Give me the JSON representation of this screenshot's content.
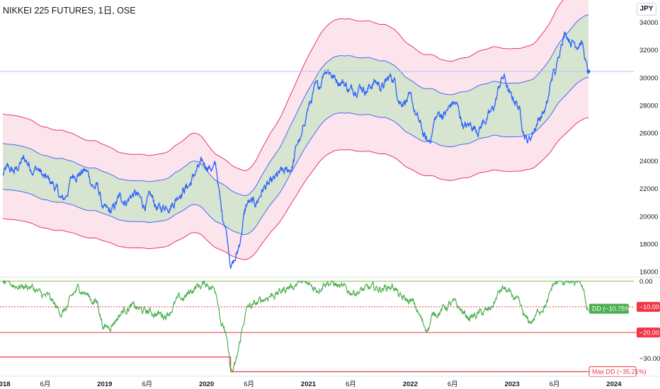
{
  "title": "NIKKEI 225 FUTURES, 1日, OSE",
  "currency": "JPY",
  "colors": {
    "price": "#2962ff",
    "inner_band_fill": "#d7e4cf",
    "inner_band_line": "#3d5afe",
    "outer_band_fill": "#fce4ec",
    "outer_band_line": "#e91e63",
    "drawdown": "#4caf50",
    "ref_red": "#f23645"
  },
  "chart_data": [
    {
      "type": "line",
      "title": "NIKKEI 225 FUTURES, 1日, OSE",
      "ylim": [
        15600,
        35600
      ],
      "y_ticks": [
        16000,
        18000,
        20000,
        22000,
        24000,
        26000,
        28000,
        30000,
        32000,
        34000
      ],
      "y_tick_labels": [
        "16000",
        "18000",
        "20000",
        "22000",
        "24000",
        "26000",
        "28000",
        "30000",
        "32000",
        "34000"
      ],
      "series": [
        {
          "x": [
            "2018-04",
            "2018-06",
            "2018-08",
            "2018-10",
            "2018-12",
            "2019-01",
            "2019-04",
            "2019-06",
            "2019-08",
            "2019-10",
            "2019-12",
            "2020-01",
            "2020-02",
            "2020-03",
            "2020-04",
            "2020-06",
            "2020-09",
            "2020-11",
            "2020-12",
            "2021-01",
            "2021-02",
            "2021-03",
            "2021-06",
            "2021-09",
            "2021-11",
            "2021-12",
            "2022-01",
            "2022-03",
            "2022-04",
            "2022-06",
            "2022-08",
            "2022-10",
            "2022-12",
            "2023-01",
            "2023-03",
            "2023-05",
            "2023-06",
            "2023-07",
            "2023-08",
            "2023-09",
            "2023-10"
          ],
          "values": [
            23900,
            22800,
            21300,
            23400,
            22300,
            20200,
            21500,
            21000,
            20600,
            21800,
            23200,
            23900,
            23300,
            20000,
            16500,
            20800,
            22500,
            23500,
            25500,
            27800,
            29200,
            30600,
            29300,
            29500,
            29800,
            28500,
            28200,
            25300,
            27000,
            28000,
            26300,
            26900,
            29800,
            28600,
            25700,
            27900,
            30300,
            33200,
            32800,
            32700,
            30400
          ]
        }
      ]
    },
    {
      "type": "line",
      "ylim": [
        -37,
        1.5
      ],
      "y_ticks": [
        0,
        -10,
        -20,
        -30
      ],
      "y_tick_labels": [
        "0.00",
        "−10.00",
        "−20.00",
        "−30.00"
      ],
      "series": [
        {
          "x": [
            "2018-04",
            "2018-06",
            "2018-08",
            "2018-10",
            "2018-12",
            "2019-01",
            "2019-04",
            "2019-06",
            "2019-08",
            "2019-10",
            "2019-12",
            "2020-01",
            "2020-02",
            "2020-03",
            "2020-04",
            "2020-06",
            "2020-09",
            "2020-11",
            "2020-12",
            "2021-01",
            "2021-02",
            "2021-03",
            "2021-06",
            "2021-09",
            "2021-11",
            "2021-12",
            "2022-01",
            "2022-03",
            "2022-04",
            "2022-06",
            "2022-08",
            "2022-10",
            "2022-12",
            "2023-01",
            "2023-03",
            "2023-05",
            "2023-06",
            "2023-07",
            "2023-08",
            "2023-09",
            "2023-10"
          ],
          "values": [
            -2,
            -6,
            -12,
            -3,
            -8,
            -18,
            -10,
            -12,
            -13,
            -7,
            -2,
            -1,
            -3,
            -18,
            -35.21,
            -10,
            -5,
            -2,
            0,
            -2,
            -3,
            0,
            -4,
            -3,
            -2,
            -7,
            -8,
            -18,
            -12,
            -9,
            -14,
            -12,
            -3,
            -6,
            -16,
            -9,
            -1,
            0,
            -1,
            -1,
            -10.75
          ]
        }
      ],
      "labels": {
        "current": "DD (−10.75%)",
        "max": "Max DD (−35.21%)",
        "ref_10": "−10.00",
        "ref_20": "−20.00"
      }
    }
  ],
  "x_axis": [
    {
      "date": "2018-01",
      "label": "2018",
      "bold": true
    },
    {
      "date": "2018-06",
      "label": "6月",
      "bold": false
    },
    {
      "date": "2019-01",
      "label": "2019",
      "bold": true
    },
    {
      "date": "2019-06",
      "label": "6月",
      "bold": false
    },
    {
      "date": "2020-01",
      "label": "2020",
      "bold": true
    },
    {
      "date": "2020-06",
      "label": "6月",
      "bold": false
    },
    {
      "date": "2021-01",
      "label": "2021",
      "bold": true
    },
    {
      "date": "2021-06",
      "label": "6月",
      "bold": false
    },
    {
      "date": "2022-01",
      "label": "2022",
      "bold": true
    },
    {
      "date": "2022-06",
      "label": "6月",
      "bold": false
    },
    {
      "date": "2023-01",
      "label": "2023",
      "bold": true
    },
    {
      "date": "2023-06",
      "label": "6月",
      "bold": false
    },
    {
      "date": "2024-01",
      "label": "2024",
      "bold": true
    }
  ]
}
